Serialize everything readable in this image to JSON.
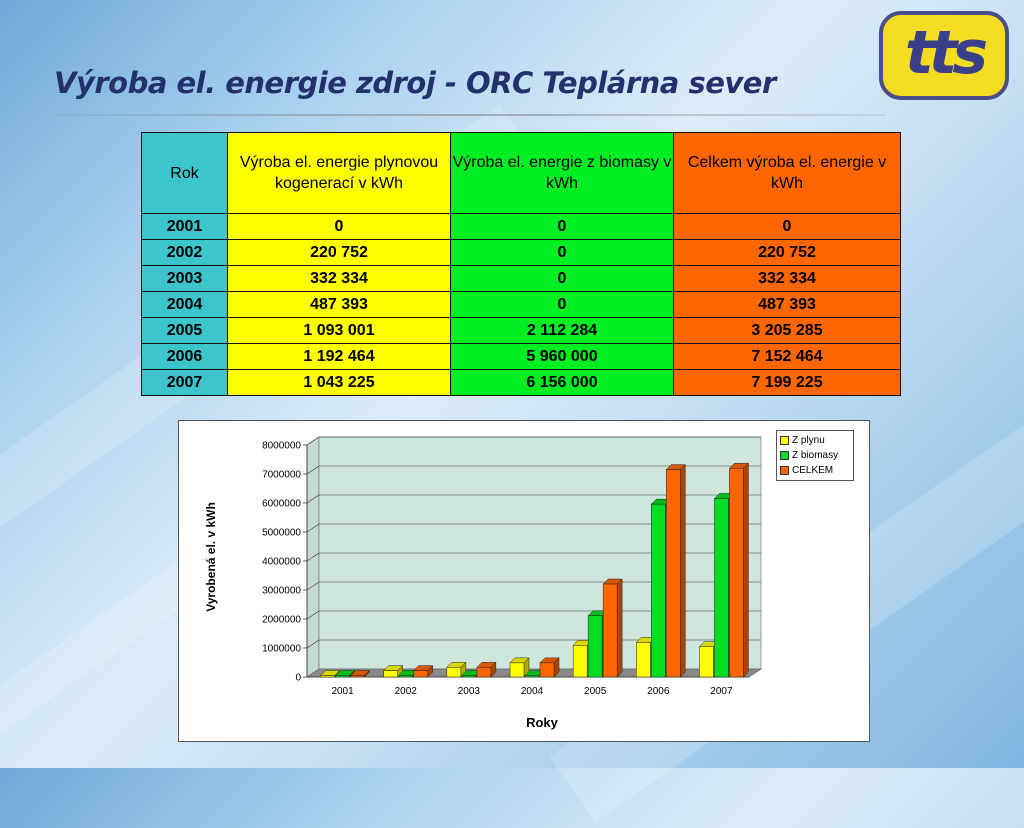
{
  "slide": {
    "title": "Výroba el. energie zdroj - ORC Teplárna sever",
    "logo_text": "tts"
  },
  "table": {
    "headers": {
      "rok": "Rok",
      "plyn": "Výroba el. energie plynovou kogenerací v kWh",
      "biomasa": "Výroba el. energie z biomasy v kWh",
      "celkem": "Celkem výroba el. energie v kWh"
    },
    "rows": [
      {
        "rok": "2001",
        "plyn": "0",
        "biomasa": "0",
        "celkem": "0"
      },
      {
        "rok": "2002",
        "plyn": "220 752",
        "biomasa": "0",
        "celkem": "220 752"
      },
      {
        "rok": "2003",
        "plyn": "332 334",
        "biomasa": "0",
        "celkem": "332 334"
      },
      {
        "rok": "2004",
        "plyn": "487 393",
        "biomasa": "0",
        "celkem": "487 393"
      },
      {
        "rok": "2005",
        "plyn": "1 093 001",
        "biomasa": "2 112 284",
        "celkem": "3 205 285"
      },
      {
        "rok": "2006",
        "plyn": "1 192 464",
        "biomasa": "5 960 000",
        "celkem": "7 152 464"
      },
      {
        "rok": "2007",
        "plyn": "1 043 225",
        "biomasa": "6 156 000",
        "celkem": "7 199 225"
      }
    ]
  },
  "chart_data": {
    "type": "bar",
    "style": "3d-clustered-column",
    "categories": [
      "2001",
      "2002",
      "2003",
      "2004",
      "2005",
      "2006",
      "2007"
    ],
    "series": [
      {
        "name": "Z plynu",
        "color": "#ffff00",
        "values": [
          0,
          220752,
          332334,
          487393,
          1093001,
          1192464,
          1043225
        ]
      },
      {
        "name": "Z biomasy",
        "color": "#00dd22",
        "values": [
          0,
          0,
          0,
          0,
          2112284,
          5960000,
          6156000
        ]
      },
      {
        "name": "CELKEM",
        "color": "#ff6600",
        "values": [
          0,
          220752,
          332334,
          487393,
          3205285,
          7152464,
          7199225
        ]
      }
    ],
    "xlabel": "Roky",
    "ylabel": "Vyrobená el. v kWh",
    "ylim": [
      0,
      8000000
    ],
    "yticks": [
      0,
      1000000,
      2000000,
      3000000,
      4000000,
      5000000,
      6000000,
      7000000,
      8000000
    ],
    "grid": true,
    "legend_position": "top-right"
  }
}
